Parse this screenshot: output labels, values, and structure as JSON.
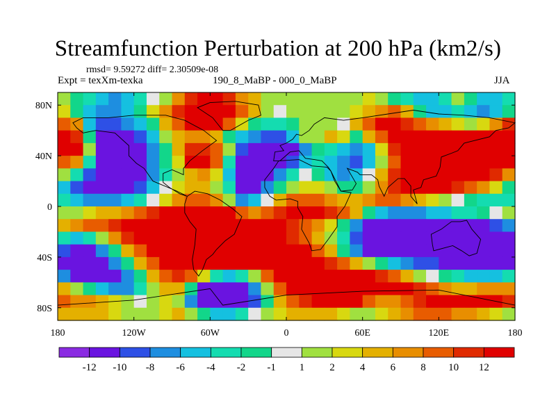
{
  "chart_data": {
    "type": "heatmap",
    "title": "Streamfunction Perturbation at 200 hPa (km2/s)",
    "stats": "rmsd= 9.59272 diff= 2.30509e-08",
    "left_label": "Expt = texXm-texka",
    "center_label": "190_8_MaBP - 000_0_MaBP",
    "right_label": "JJA",
    "x_ticks": [
      "180",
      "120W",
      "60W",
      "0",
      "60E",
      "120E",
      "180"
    ],
    "x_tick_values": [
      -180,
      -120,
      -60,
      0,
      60,
      120,
      180
    ],
    "y_ticks": [
      "80N",
      "40N",
      "0",
      "40S",
      "80S"
    ],
    "y_tick_values": [
      80,
      40,
      0,
      -40,
      -80
    ],
    "xlim": [
      -180,
      180
    ],
    "ylim": [
      -90,
      90
    ],
    "colorbar_labels": [
      "-12",
      "-10",
      "-8",
      "-6",
      "-4",
      "-2",
      "-1",
      "1",
      "2",
      "4",
      "6",
      "8",
      "10",
      "12"
    ],
    "colorbar_colors": [
      "#8a2be2",
      "#6a14e0",
      "#2e50e6",
      "#1e8ee0",
      "#15c0e0",
      "#14dcb0",
      "#12d68a",
      "#e6e6e6",
      "#a0e040",
      "#d8d810",
      "#e4b000",
      "#e88e00",
      "#e85c00",
      "#e02a00",
      "#e00000"
    ],
    "values": [
      [
        1,
        -2,
        -4,
        -6,
        -7,
        -6,
        -4,
        -1,
        1,
        6,
        10,
        12,
        12,
        10,
        6,
        4,
        1,
        1,
        1,
        1,
        1,
        1,
        1,
        1,
        2,
        1,
        -2,
        -4,
        -6,
        -6,
        -4,
        1,
        -2,
        -6,
        -6,
        -4
      ],
      [
        2,
        -2,
        -6,
        -8,
        -8,
        -6,
        -2,
        2,
        6,
        10,
        12,
        12,
        12,
        12,
        8,
        4,
        1,
        -1,
        1,
        1,
        1,
        1,
        1,
        2,
        4,
        6,
        8,
        4,
        -2,
        -6,
        -6,
        -4,
        -6,
        -8,
        -6,
        -2
      ],
      [
        8,
        6,
        -6,
        -10,
        -10,
        -8,
        -6,
        -2,
        4,
        8,
        12,
        12,
        12,
        8,
        2,
        -2,
        -4,
        -4,
        -2,
        1,
        1,
        1,
        -1,
        4,
        8,
        12,
        12,
        10,
        8,
        6,
        4,
        2,
        1,
        2,
        6,
        10
      ],
      [
        12,
        10,
        -2,
        -12,
        -12,
        -12,
        -10,
        -6,
        1,
        4,
        6,
        6,
        4,
        -2,
        -6,
        -8,
        -10,
        -10,
        -6,
        1,
        1,
        4,
        2,
        -2,
        4,
        8,
        12,
        12,
        12,
        12,
        12,
        12,
        12,
        12,
        12,
        12
      ],
      [
        12,
        12,
        1,
        -12,
        -12,
        -12,
        -12,
        -8,
        -2,
        4,
        10,
        10,
        8,
        1,
        -10,
        -12,
        -12,
        -12,
        -12,
        -8,
        -2,
        -4,
        -6,
        -8,
        -6,
        2,
        10,
        12,
        12,
        12,
        12,
        12,
        12,
        12,
        12,
        12
      ],
      [
        8,
        6,
        -4,
        -12,
        -12,
        -12,
        -12,
        -8,
        -2,
        2,
        12,
        12,
        8,
        -4,
        -12,
        -12,
        -12,
        -12,
        -10,
        -6,
        -4,
        -6,
        -8,
        -10,
        -6,
        1,
        8,
        12,
        12,
        12,
        12,
        12,
        12,
        12,
        12,
        12
      ],
      [
        1,
        -4,
        -10,
        -12,
        -12,
        -12,
        -12,
        -8,
        -4,
        1,
        4,
        6,
        2,
        -6,
        -12,
        -12,
        -12,
        -8,
        -4,
        -1,
        -2,
        -6,
        -8,
        -6,
        -1,
        4,
        10,
        12,
        12,
        12,
        12,
        12,
        12,
        12,
        10,
        6
      ],
      [
        -6,
        -10,
        -12,
        -12,
        -12,
        -12,
        -10,
        -6,
        -1,
        2,
        4,
        4,
        1,
        -4,
        -12,
        -12,
        -8,
        -2,
        1,
        2,
        2,
        1,
        -2,
        -2,
        1,
        6,
        10,
        12,
        12,
        12,
        12,
        10,
        8,
        6,
        2,
        -2
      ],
      [
        -4,
        -6,
        -8,
        -8,
        -8,
        -6,
        -4,
        -1,
        2,
        6,
        8,
        8,
        6,
        1,
        -8,
        -6,
        -1,
        4,
        8,
        8,
        8,
        6,
        4,
        4,
        6,
        8,
        8,
        6,
        4,
        2,
        1,
        -1,
        -2,
        -4,
        -4,
        -4
      ],
      [
        1,
        1,
        2,
        4,
        4,
        6,
        8,
        10,
        12,
        12,
        12,
        12,
        12,
        12,
        8,
        6,
        8,
        10,
        12,
        12,
        12,
        10,
        8,
        4,
        -2,
        -6,
        -8,
        -8,
        -8,
        -6,
        -6,
        -4,
        -4,
        -2,
        -1,
        1
      ],
      [
        4,
        6,
        8,
        8,
        10,
        12,
        12,
        12,
        12,
        12,
        12,
        12,
        12,
        12,
        12,
        12,
        12,
        12,
        10,
        8,
        6,
        2,
        -2,
        -8,
        -12,
        -12,
        -12,
        -12,
        -12,
        -12,
        -12,
        -12,
        -12,
        -12,
        -10,
        -8
      ],
      [
        -4,
        -6,
        -4,
        1,
        6,
        10,
        12,
        12,
        12,
        12,
        12,
        12,
        12,
        12,
        12,
        12,
        12,
        12,
        10,
        8,
        4,
        1,
        -4,
        -10,
        -12,
        -12,
        -12,
        -12,
        -12,
        -12,
        -12,
        -12,
        -12,
        -12,
        -12,
        -12
      ],
      [
        -10,
        -12,
        -12,
        -8,
        -2,
        4,
        8,
        12,
        12,
        12,
        12,
        12,
        12,
        12,
        12,
        12,
        12,
        12,
        12,
        12,
        8,
        4,
        -2,
        -8,
        -12,
        -12,
        -12,
        -12,
        -12,
        -12,
        -12,
        -12,
        -12,
        -12,
        -12,
        -12
      ],
      [
        -12,
        -12,
        -12,
        -12,
        -8,
        -2,
        4,
        8,
        12,
        12,
        12,
        12,
        12,
        12,
        12,
        12,
        12,
        12,
        12,
        12,
        12,
        10,
        8,
        4,
        1,
        -2,
        -6,
        -8,
        -10,
        -10,
        -12,
        -12,
        -12,
        -12,
        -12,
        -12
      ],
      [
        -8,
        -12,
        -12,
        -12,
        -12,
        -8,
        -2,
        4,
        8,
        10,
        8,
        2,
        -4,
        -6,
        -4,
        1,
        8,
        12,
        12,
        12,
        12,
        12,
        12,
        12,
        12,
        10,
        8,
        4,
        1,
        -1,
        -2,
        -4,
        -6,
        -6,
        -6,
        -4
      ],
      [
        4,
        1,
        -2,
        -6,
        -8,
        -8,
        -4,
        1,
        4,
        4,
        -2,
        -12,
        -12,
        -12,
        -12,
        -8,
        1,
        8,
        12,
        12,
        12,
        12,
        12,
        12,
        12,
        12,
        12,
        12,
        10,
        8,
        6,
        4,
        4,
        6,
        6,
        6
      ],
      [
        8,
        6,
        6,
        4,
        2,
        1,
        -1,
        1,
        2,
        1,
        -8,
        -12,
        -12,
        -12,
        -12,
        -10,
        -2,
        4,
        8,
        10,
        12,
        12,
        12,
        12,
        8,
        6,
        6,
        8,
        10,
        12,
        12,
        12,
        12,
        12,
        12,
        10
      ],
      [
        4,
        4,
        4,
        4,
        2,
        1,
        1,
        1,
        2,
        4,
        1,
        -2,
        -6,
        -6,
        -4,
        -1,
        1,
        2,
        4,
        4,
        4,
        4,
        2,
        1,
        1,
        2,
        4,
        6,
        8,
        8,
        8,
        6,
        6,
        4,
        2,
        1
      ]
    ]
  }
}
